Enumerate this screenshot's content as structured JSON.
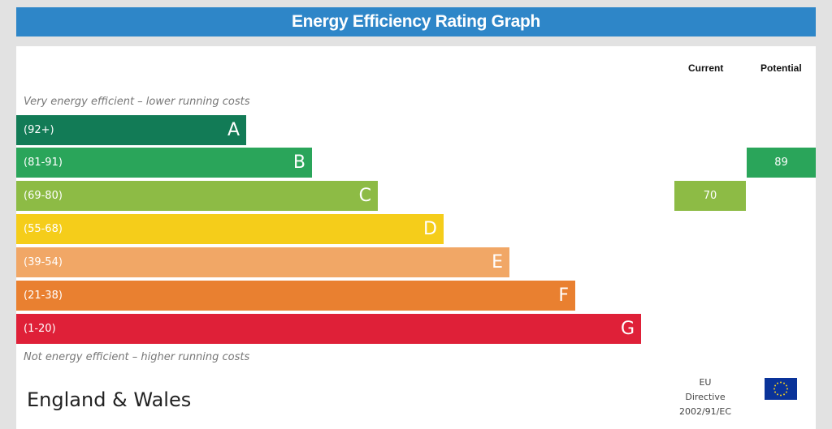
{
  "title": "Energy Efficiency Rating Graph",
  "columns": {
    "current": "Current",
    "potential": "Potential"
  },
  "top_note": "Very energy efficient – lower running costs",
  "bottom_note": "Not energy efficient – higher running costs",
  "bands": [
    {
      "range": "(92+)",
      "letter": "A",
      "color": "#127b56"
    },
    {
      "range": "(81-91)",
      "letter": "B",
      "color": "#2aa55a"
    },
    {
      "range": "(69-80)",
      "letter": "C",
      "color": "#8dbb45"
    },
    {
      "range": "(55-68)",
      "letter": "D",
      "color": "#f5cd1a"
    },
    {
      "range": "(39-54)",
      "letter": "E",
      "color": "#f1a766"
    },
    {
      "range": "(21-38)",
      "letter": "F",
      "color": "#e98030"
    },
    {
      "range": "(1-20)",
      "letter": "G",
      "color": "#df2038"
    }
  ],
  "current": {
    "value": "70",
    "band": "C",
    "color": "#8dbb45"
  },
  "potential": {
    "value": "89",
    "band": "B",
    "color": "#2aa55a"
  },
  "region": "England & Wales",
  "directive": {
    "line1": "EU",
    "line2": "Directive",
    "line3": "2002/91/EC"
  },
  "flag_icon": "eu-flag-icon"
}
